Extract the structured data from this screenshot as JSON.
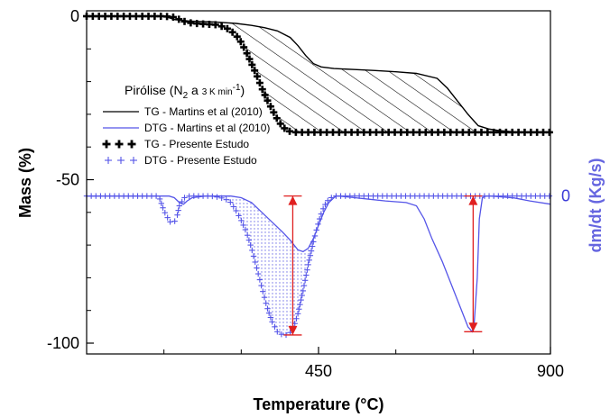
{
  "chart_data": {
    "type": "line",
    "xlabel": "Temperature (°C)",
    "ylabel": "Mass (%)",
    "ylabel_right": "dm/dt (Kg/s)",
    "xlim": [
      0,
      900
    ],
    "ylim": [
      -100,
      0
    ],
    "x_ticks": [
      {
        "value": 450,
        "label": "450"
      },
      {
        "value": 900,
        "label": "900"
      }
    ],
    "y_ticks": [
      {
        "value": 0,
        "label": "0"
      },
      {
        "value": -50,
        "label": "-50"
      },
      {
        "value": -100,
        "label": "-100"
      }
    ],
    "y2_ticks": [
      {
        "value": -55,
        "label": "0"
      }
    ],
    "legend": {
      "title_main": "Pirólise (N",
      "title_sub": "2",
      "title_mid": " a ",
      "title_small": "3 K min",
      "title_sup": "-1",
      "title_end": ")",
      "items": [
        {
          "label": "TG - Martins et al (2010)"
        },
        {
          "label": "DTG - Martins et al (2010)"
        },
        {
          "label": "TG - Presente Estudo"
        },
        {
          "label": "DTG - Presente Estudo"
        }
      ]
    },
    "series": [
      {
        "name": "TG - Martins et al (2010)",
        "color": "#000000",
        "x": [
          0,
          100,
          150,
          170,
          200,
          250,
          290,
          320,
          345,
          370,
          395,
          410,
          425,
          440,
          455,
          480,
          520,
          560,
          600,
          640,
          680,
          700,
          720,
          740,
          760,
          780,
          800,
          830,
          860,
          900
        ],
        "y": [
          0,
          0,
          0,
          -1,
          -1.5,
          -1.8,
          -2.2,
          -2.8,
          -3.5,
          -4.5,
          -6.5,
          -9,
          -12,
          -14.5,
          -15.5,
          -16,
          -16.3,
          -16.6,
          -17.0,
          -17.5,
          -19,
          -22,
          -26,
          -30,
          -33.5,
          -34.5,
          -35,
          -35.4,
          -35.5,
          -35.5
        ]
      },
      {
        "name": "TG - Presente Estudo",
        "color": "#000000",
        "x": [
          0,
          25,
          50,
          75,
          100,
          125,
          150,
          170,
          180,
          190,
          200,
          210,
          220,
          230,
          240,
          250,
          260,
          270,
          280,
          290,
          300,
          310,
          320,
          330,
          340,
          350,
          360,
          370,
          380,
          390,
          400,
          425,
          450,
          475,
          500,
          525,
          550,
          575,
          600,
          625,
          650,
          675,
          700,
          725,
          750,
          775,
          800,
          825,
          850,
          875,
          900
        ],
        "y": [
          0,
          0,
          0,
          0,
          0,
          0,
          0,
          -0.3,
          -1,
          -1.6,
          -2,
          -2.2,
          -2.3,
          -2.4,
          -2.5,
          -2.6,
          -3,
          -3.5,
          -4.5,
          -5.8,
          -8,
          -11,
          -14.5,
          -18,
          -22,
          -25.5,
          -28.5,
          -31.5,
          -33.8,
          -35,
          -35.5,
          -35.5,
          -35.5,
          -35.5,
          -35.5,
          -35.5,
          -35.5,
          -35.5,
          -35.5,
          -35.5,
          -35.5,
          -35.5,
          -35.5,
          -35.5,
          -35.5,
          -35.5,
          -35.5,
          -35.5,
          -35.5,
          -35.5,
          -35.5
        ]
      },
      {
        "name": "DTG - Martins et al (2010)",
        "color": "#5555e8",
        "x": [
          0,
          100,
          160,
          170,
          180,
          188,
          195,
          205,
          230,
          250,
          280,
          300,
          320,
          340,
          360,
          380,
          395,
          410,
          420,
          430,
          440,
          450,
          460,
          470,
          480,
          485,
          490,
          520,
          550,
          580,
          620,
          640,
          655,
          670,
          690,
          710,
          730,
          740,
          748,
          752,
          758,
          762,
          768,
          775,
          785,
          800,
          830,
          860,
          900
        ],
        "y": [
          -55,
          -55,
          -55,
          -55.5,
          -57,
          -57.5,
          -56.5,
          -55.5,
          -55,
          -55,
          -55,
          -55.5,
          -57,
          -60,
          -63,
          -66,
          -68.5,
          -71.5,
          -72,
          -71,
          -68,
          -64,
          -60,
          -57,
          -55.5,
          -55,
          -55,
          -55.5,
          -56,
          -56.5,
          -57,
          -58,
          -62,
          -68,
          -75,
          -83,
          -91,
          -95,
          -96.5,
          -94,
          -80,
          -62,
          -55.5,
          -55,
          -55,
          -55.2,
          -55.6,
          -56.5,
          -57.5
        ]
      },
      {
        "name": "DTG - Presente Estudo",
        "color": "#5555e8",
        "x": [
          0,
          20,
          40,
          60,
          80,
          100,
          120,
          140,
          150,
          155,
          160,
          165,
          170,
          175,
          180,
          190,
          200,
          210,
          220,
          230,
          240,
          250,
          260,
          270,
          280,
          290,
          300,
          310,
          320,
          330,
          340,
          350,
          360,
          370,
          380,
          390,
          400,
          410,
          420,
          430,
          440,
          450,
          455,
          460,
          465,
          470,
          475,
          480,
          490,
          500,
          520,
          540,
          560,
          580,
          600,
          620,
          640,
          660,
          680,
          700,
          720,
          740,
          760,
          780,
          800,
          820,
          840,
          860,
          880,
          900
        ],
        "y": [
          -55,
          -55,
          -55,
          -55,
          -55,
          -55,
          -55,
          -55,
          -59.5,
          -61,
          -62.5,
          -63.5,
          -63,
          -61.5,
          -58,
          -55.5,
          -55,
          -55,
          -55,
          -55,
          -55,
          -55.2,
          -55.5,
          -56,
          -57,
          -59.5,
          -62.5,
          -66,
          -71,
          -77,
          -83,
          -89,
          -93.5,
          -96.5,
          -97.5,
          -97.5,
          -96,
          -91,
          -84,
          -76,
          -69,
          -63,
          -60.5,
          -58.5,
          -57,
          -56,
          -55.5,
          -55,
          -55,
          -55,
          -55,
          -55,
          -55,
          -55,
          -55,
          -55,
          -55,
          -55,
          -55,
          -55,
          -55,
          -55,
          -55,
          -55,
          -55,
          -55,
          -55,
          -55,
          -55,
          -55
        ]
      }
    ],
    "annotations": [
      {
        "type": "double-arrow",
        "color": "#e02020",
        "x": 400,
        "y_from": -55,
        "y_to": -97.5
      },
      {
        "type": "double-arrow",
        "color": "#e02020",
        "x": 750,
        "y_from": -55,
        "y_to": -96.5
      }
    ],
    "grid": false
  }
}
